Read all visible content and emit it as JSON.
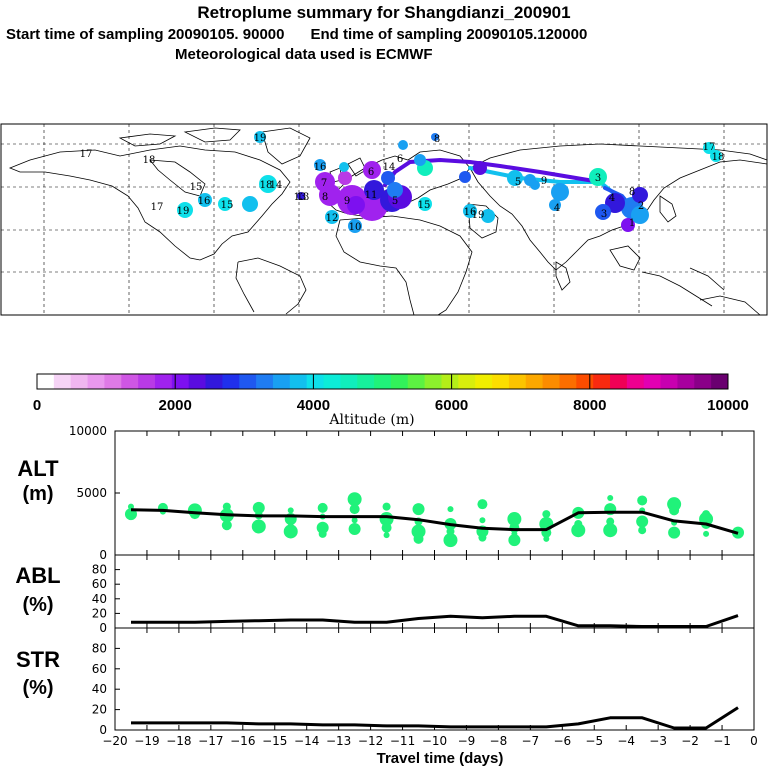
{
  "header": {
    "title": "Retroplume summary for Shangdianzi_200901",
    "start_label": "Start time of sampling 20090105. 90000",
    "end_label": "End time of sampling 20090105.120000",
    "met_label": "Meteorological data used is ECMWF"
  },
  "colorbar": {
    "colors": [
      "#ffffff",
      "#f6d4f6",
      "#f0b6f0",
      "#e998ee",
      "#df7ae6",
      "#cf56e4",
      "#b93ae6",
      "#a022ee",
      "#7d10f0",
      "#5a0ce0",
      "#3218dc",
      "#2030ec",
      "#1f58f0",
      "#1f7cf2",
      "#19a0f2",
      "#12c0ee",
      "#0ee0ea",
      "#0cecd8",
      "#10eebc",
      "#16f09c",
      "#20f27a",
      "#32f25a",
      "#5cf242",
      "#8cf02c",
      "#b4ee18",
      "#d8ee0c",
      "#f0ee00",
      "#fcde00",
      "#fcc400",
      "#fca800",
      "#fc8c00",
      "#fc6e00",
      "#fc4c00",
      "#f82a10",
      "#f00056",
      "#ee0090",
      "#e200b2",
      "#c800b0",
      "#a8009e",
      "#8a0088",
      "#6a0070"
    ],
    "ticks": [
      "0",
      "2000",
      "4000",
      "6000",
      "8000",
      "10000"
    ],
    "label": "Altitude (m)"
  },
  "map_labels": [
    {
      "text": "19",
      "color": "#19a0f2"
    },
    {
      "text": "8",
      "color": "#1f7cf2"
    },
    {
      "text": "17",
      "color": "#0ee0ea"
    },
    {
      "text": "18",
      "color": "#12c0ee"
    },
    {
      "text": "15",
      "color": "#19a0f2"
    },
    {
      "text": "13",
      "color": "#0ee0ea"
    },
    {
      "text": "17",
      "color": "#12c0ee"
    },
    {
      "text": "19",
      "color": "#0ee0ea"
    },
    {
      "text": "16",
      "color": "#0ee0ea"
    },
    {
      "text": "15",
      "color": "#12c0ee"
    },
    {
      "text": "14",
      "color": "#0ee0ea"
    },
    {
      "text": "18",
      "color": "#12c0ee"
    },
    {
      "text": "13",
      "color": "#3218dc"
    },
    {
      "text": "12",
      "color": "#0ee0ea"
    },
    {
      "text": "10",
      "color": "#12c0ee"
    },
    {
      "text": "11",
      "color": "#1f58f0"
    },
    {
      "text": "9",
      "color": "#a022ee"
    },
    {
      "text": "8",
      "color": "#a022ee"
    },
    {
      "text": "7",
      "color": "#a022ee"
    },
    {
      "text": "6",
      "color": "#a022ee"
    },
    {
      "text": "5",
      "color": "#3218dc"
    },
    {
      "text": "6",
      "color": "#1f58f0"
    },
    {
      "text": "15",
      "color": "#10eebc"
    },
    {
      "text": "14",
      "color": "#19a0f2"
    },
    {
      "text": "16",
      "color": "#0ee0ea"
    },
    {
      "text": "19",
      "color": "#12c0ee"
    },
    {
      "text": "4",
      "color": "#12c0ee"
    },
    {
      "text": "3",
      "color": "#10eebc"
    },
    {
      "text": "4",
      "color": "#3218dc"
    },
    {
      "text": "2",
      "color": "#1f7cf2"
    },
    {
      "text": "3",
      "color": "#1f58f0"
    },
    {
      "text": "1",
      "color": "#7d10f0"
    },
    {
      "text": "17",
      "color": "#0ee0ea"
    },
    {
      "text": "18",
      "color": "#0ee0ea"
    },
    {
      "text": "16",
      "color": "#19a0f2"
    },
    {
      "text": "9",
      "color": "#12c0ee"
    },
    {
      "text": "5",
      "color": "#19a0f2"
    },
    {
      "text": "8",
      "color": "#19a0f2"
    }
  ],
  "chart_data": [
    {
      "type": "line",
      "panel": "ALT",
      "ylabel": "ALT",
      "yunit": "(m)",
      "ylim": [
        0,
        10000
      ],
      "yticks": [
        "0",
        "5000",
        "10000"
      ],
      "x": [
        -19.5,
        -18.5,
        -17.5,
        -16.5,
        -15.5,
        -14.5,
        -13.5,
        -12.5,
        -11.5,
        -10.5,
        -9.5,
        -8.5,
        -7.5,
        -6.5,
        -5.5,
        -4.5,
        -3.5,
        -2.5,
        -1.5,
        -0.5
      ],
      "values": [
        3650,
        3600,
        3400,
        3250,
        3150,
        3150,
        3100,
        3100,
        3100,
        2850,
        2450,
        2150,
        2050,
        2050,
        3400,
        3450,
        3450,
        2750,
        2500,
        1750
      ],
      "scatter": [
        {
          "x": -19.5,
          "y": [
            3900,
            3300
          ]
        },
        {
          "x": -18.5,
          "y": [
            3800,
            3500
          ]
        },
        {
          "x": -17.5,
          "y": [
            3600,
            3300
          ]
        },
        {
          "x": -16.5,
          "y": [
            3900,
            3200,
            2400
          ]
        },
        {
          "x": -15.5,
          "y": [
            3800,
            3200,
            2300
          ]
        },
        {
          "x": -14.5,
          "y": [
            3600,
            2900,
            2200,
            1900
          ]
        },
        {
          "x": -13.5,
          "y": [
            3800,
            3100,
            2200,
            1700
          ]
        },
        {
          "x": -12.5,
          "y": [
            4500,
            3700,
            2800,
            2100
          ]
        },
        {
          "x": -11.5,
          "y": [
            3900,
            2900,
            2200,
            1600
          ]
        },
        {
          "x": -10.5,
          "y": [
            3700,
            2700,
            1900,
            1300
          ]
        },
        {
          "x": -9.5,
          "y": [
            3700,
            2500,
            1900,
            1200
          ]
        },
        {
          "x": -8.5,
          "y": [
            4100,
            2800,
            1900,
            1400
          ]
        },
        {
          "x": -7.5,
          "y": [
            2900,
            2200,
            1700,
            1200
          ]
        },
        {
          "x": -6.5,
          "y": [
            3300,
            2500,
            1800,
            1300
          ]
        },
        {
          "x": -5.5,
          "y": [
            3400,
            2500,
            2000
          ]
        },
        {
          "x": -4.5,
          "y": [
            4600,
            3700,
            2700,
            2000
          ]
        },
        {
          "x": -3.5,
          "y": [
            4400,
            3600,
            2700,
            2000
          ]
        },
        {
          "x": -2.5,
          "y": [
            4100,
            3600,
            2600,
            1800
          ]
        },
        {
          "x": -1.5,
          "y": [
            3300,
            2900,
            2500,
            1700
          ]
        },
        {
          "x": -0.5,
          "y": [
            1800
          ]
        }
      ]
    },
    {
      "type": "line",
      "panel": "ABL",
      "ylabel": "ABL",
      "yunit": "(%)",
      "ylim": [
        0,
        100
      ],
      "yticks": [
        "0",
        "20",
        "40",
        "60",
        "80"
      ],
      "x": [
        -19.5,
        -18.5,
        -17.5,
        -16.5,
        -15.5,
        -14.5,
        -13.5,
        -12.5,
        -11.5,
        -10.5,
        -9.5,
        -8.5,
        -7.5,
        -6.5,
        -5.5,
        -4.5,
        -3.5,
        -2.5,
        -1.5,
        -0.5
      ],
      "values": [
        8,
        8,
        8,
        9,
        10,
        11,
        11,
        8,
        8,
        13,
        16,
        14,
        16,
        16,
        3,
        3,
        2,
        2,
        2,
        17
      ]
    },
    {
      "type": "line",
      "panel": "STR",
      "ylabel": "STR",
      "yunit": "(%)",
      "ylim": [
        0,
        100
      ],
      "yticks": [
        "0",
        "20",
        "40",
        "60",
        "80"
      ],
      "x": [
        -19.5,
        -18.5,
        -17.5,
        -16.5,
        -15.5,
        -14.5,
        -13.5,
        -12.5,
        -11.5,
        -10.5,
        -9.5,
        -8.5,
        -7.5,
        -6.5,
        -5.5,
        -4.5,
        -3.5,
        -2.5,
        -1.5,
        -0.5
      ],
      "values": [
        7,
        7,
        7,
        7,
        6,
        6,
        5,
        5,
        4,
        4,
        3,
        3,
        3,
        3,
        6,
        12,
        12,
        2,
        2,
        22
      ]
    }
  ],
  "xaxis": {
    "ticks": [
      "-20",
      "-19",
      "-18",
      "-17",
      "-16",
      "-15",
      "-14",
      "-13",
      "-12",
      "-11",
      "-10",
      "-9",
      "-8",
      "-7",
      "-6",
      "-5",
      "-4",
      "-3",
      "-2",
      "-1",
      "0"
    ],
    "label": "Travel time (days)"
  }
}
